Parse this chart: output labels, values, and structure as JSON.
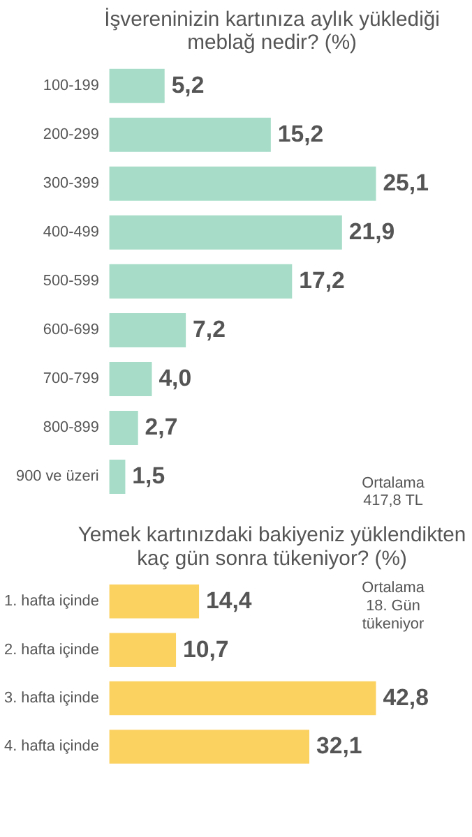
{
  "chart_data": [
    {
      "type": "bar",
      "orientation": "horizontal",
      "title": "İşvereninizin kartınıza aylık yüklediği meblağ nedir? (%)",
      "categories": [
        "100-199",
        "200-299",
        "300-399",
        "400-499",
        "500-599",
        "600-699",
        "700-799",
        "800-899",
        "900 ve üzeri"
      ],
      "values": [
        5.2,
        15.2,
        25.1,
        21.9,
        17.2,
        7.2,
        4.0,
        2.7,
        1.5
      ],
      "value_labels": [
        "5,2",
        "15,2",
        "25,1",
        "21,9",
        "17,2",
        "7,2",
        "4,0",
        "2,7",
        "1,5"
      ],
      "color": "#a6dcc8",
      "annotations": [
        "Ortalama 417,8 TL"
      ]
    },
    {
      "type": "bar",
      "orientation": "horizontal",
      "title": "Yemek kartınızdaki bakiyeniz yüklendikten kaç gün sonra tükeniyor? (%)",
      "categories": [
        "1. hafta içinde",
        "2. hafta içinde",
        "3. hafta içinde",
        "4. hafta içinde"
      ],
      "values": [
        14.4,
        10.7,
        42.8,
        32.1
      ],
      "value_labels": [
        "14,4",
        "10,7",
        "42,8",
        "32,1"
      ],
      "color": "#fbd160",
      "annotations": [
        "Ortalama 18. Gün tükeniyor"
      ]
    }
  ]
}
